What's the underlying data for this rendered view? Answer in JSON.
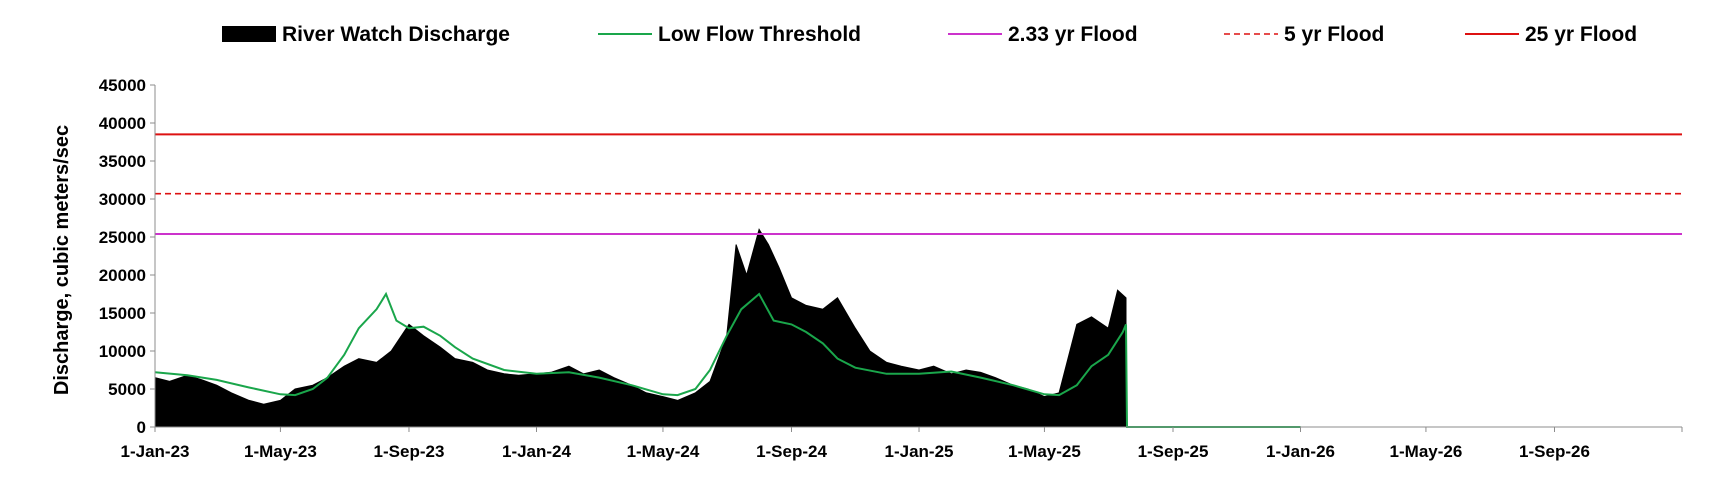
{
  "chart_data": {
    "type": "area",
    "title": "",
    "xlabel": "",
    "ylabel": "Discharge, cubic meters/sec",
    "ylim": [
      0,
      45000
    ],
    "yticks": [
      0,
      5000,
      10000,
      15000,
      20000,
      25000,
      30000,
      35000,
      40000,
      45000
    ],
    "xlim": [
      "2023-01-01",
      "2027-01-01"
    ],
    "xtick_labels": [
      "1-Jan-23",
      "1-May-23",
      "1-Sep-23",
      "1-Jan-24",
      "1-May-24",
      "1-Sep-24",
      "1-Jan-25",
      "1-May-25",
      "1-Sep-25",
      "1-Jan-26",
      "1-May-26",
      "1-Sep-26"
    ],
    "xtick_dates": [
      "2023-01-01",
      "2023-05-01",
      "2023-09-01",
      "2024-01-01",
      "2024-05-01",
      "2024-09-01",
      "2025-01-01",
      "2025-05-01",
      "2025-09-01",
      "2026-01-01",
      "2026-05-01",
      "2026-09-01"
    ],
    "grid": false,
    "legend_position": "top",
    "series": [
      {
        "name": "River Watch Discharge",
        "style": "filled-area",
        "color": "#000000",
        "x": [
          "2023-01-01",
          "2023-01-15",
          "2023-02-01",
          "2023-02-15",
          "2023-03-01",
          "2023-03-15",
          "2023-04-01",
          "2023-04-15",
          "2023-05-01",
          "2023-05-15",
          "2023-06-01",
          "2023-06-15",
          "2023-07-01",
          "2023-07-15",
          "2023-08-01",
          "2023-08-15",
          "2023-09-01",
          "2023-09-15",
          "2023-10-01",
          "2023-10-15",
          "2023-11-01",
          "2023-11-15",
          "2023-12-01",
          "2023-12-15",
          "2024-01-01",
          "2024-01-15",
          "2024-02-01",
          "2024-02-15",
          "2024-03-01",
          "2024-03-15",
          "2024-04-01",
          "2024-04-15",
          "2024-05-01",
          "2024-05-15",
          "2024-06-01",
          "2024-06-15",
          "2024-07-01",
          "2024-07-10",
          "2024-07-20",
          "2024-08-01",
          "2024-08-10",
          "2024-08-20",
          "2024-09-01",
          "2024-09-15",
          "2024-10-01",
          "2024-10-15",
          "2024-11-01",
          "2024-11-15",
          "2024-12-01",
          "2024-12-15",
          "2025-01-01",
          "2025-01-15",
          "2025-02-01",
          "2025-02-15",
          "2025-03-01",
          "2025-03-15",
          "2025-04-01",
          "2025-04-15",
          "2025-05-01",
          "2025-05-15",
          "2025-06-01",
          "2025-06-15",
          "2025-07-01",
          "2025-07-10",
          "2025-07-18"
        ],
        "y": [
          6500,
          6000,
          6800,
          6200,
          5500,
          4500,
          3500,
          3000,
          3500,
          5000,
          5500,
          6500,
          8000,
          9000,
          8500,
          10000,
          13500,
          12000,
          10500,
          9000,
          8500,
          7500,
          7000,
          6800,
          7000,
          7200,
          8000,
          7000,
          7500,
          6500,
          5500,
          4500,
          4000,
          3500,
          4500,
          6000,
          12000,
          24000,
          20000,
          26000,
          24000,
          21000,
          17000,
          16000,
          15500,
          17000,
          13000,
          10000,
          8500,
          8000,
          7500,
          8000,
          7000,
          7500,
          7200,
          6500,
          5500,
          5000,
          4000,
          4500,
          13500,
          14500,
          13000,
          18000,
          17000
        ],
        "values_note_omitted": true
      },
      {
        "name": "Low Flow Threshold",
        "style": "line",
        "color": "#1aa64b",
        "x": [
          "2023-01-01",
          "2023-02-01",
          "2023-03-01",
          "2023-04-01",
          "2023-05-01",
          "2023-05-15",
          "2023-06-01",
          "2023-06-15",
          "2023-07-01",
          "2023-07-15",
          "2023-08-01",
          "2023-08-10",
          "2023-08-20",
          "2023-09-01",
          "2023-09-15",
          "2023-10-01",
          "2023-10-15",
          "2023-11-01",
          "2023-12-01",
          "2024-01-01",
          "2024-02-01",
          "2024-03-01",
          "2024-04-01",
          "2024-05-01",
          "2024-05-15",
          "2024-06-01",
          "2024-06-15",
          "2024-07-01",
          "2024-07-15",
          "2024-08-01",
          "2024-08-15",
          "2024-09-01",
          "2024-09-15",
          "2024-10-01",
          "2024-10-15",
          "2024-11-01",
          "2024-12-01",
          "2025-01-01",
          "2025-02-01",
          "2025-03-01",
          "2025-04-01",
          "2025-05-01",
          "2025-05-15",
          "2025-06-01",
          "2025-06-15",
          "2025-07-01",
          "2025-07-15",
          "2025-07-18",
          "2025-07-19",
          "2026-01-01"
        ],
        "y": [
          7200,
          6800,
          6200,
          5200,
          4300,
          4200,
          5000,
          6500,
          9500,
          13000,
          15500,
          17500,
          14000,
          13000,
          13200,
          12000,
          10500,
          9000,
          7500,
          7000,
          7200,
          6500,
          5500,
          4300,
          4200,
          5000,
          7500,
          12000,
          15500,
          17500,
          14000,
          13500,
          12500,
          11000,
          9000,
          7800,
          7000,
          7000,
          7300,
          6500,
          5500,
          4300,
          4200,
          5500,
          8000,
          9500,
          12500,
          13500,
          0,
          0
        ]
      },
      {
        "name": "2.33 yr Flood",
        "style": "hline",
        "color": "#cc33cc",
        "y": [
          25400
        ]
      },
      {
        "name": "5 yr Flood",
        "style": "hline-dashed",
        "color": "#dd1111",
        "y": [
          30700
        ]
      },
      {
        "name": "25 yr Flood",
        "style": "hline",
        "color": "#dd1111",
        "y": [
          38500
        ]
      }
    ]
  }
}
